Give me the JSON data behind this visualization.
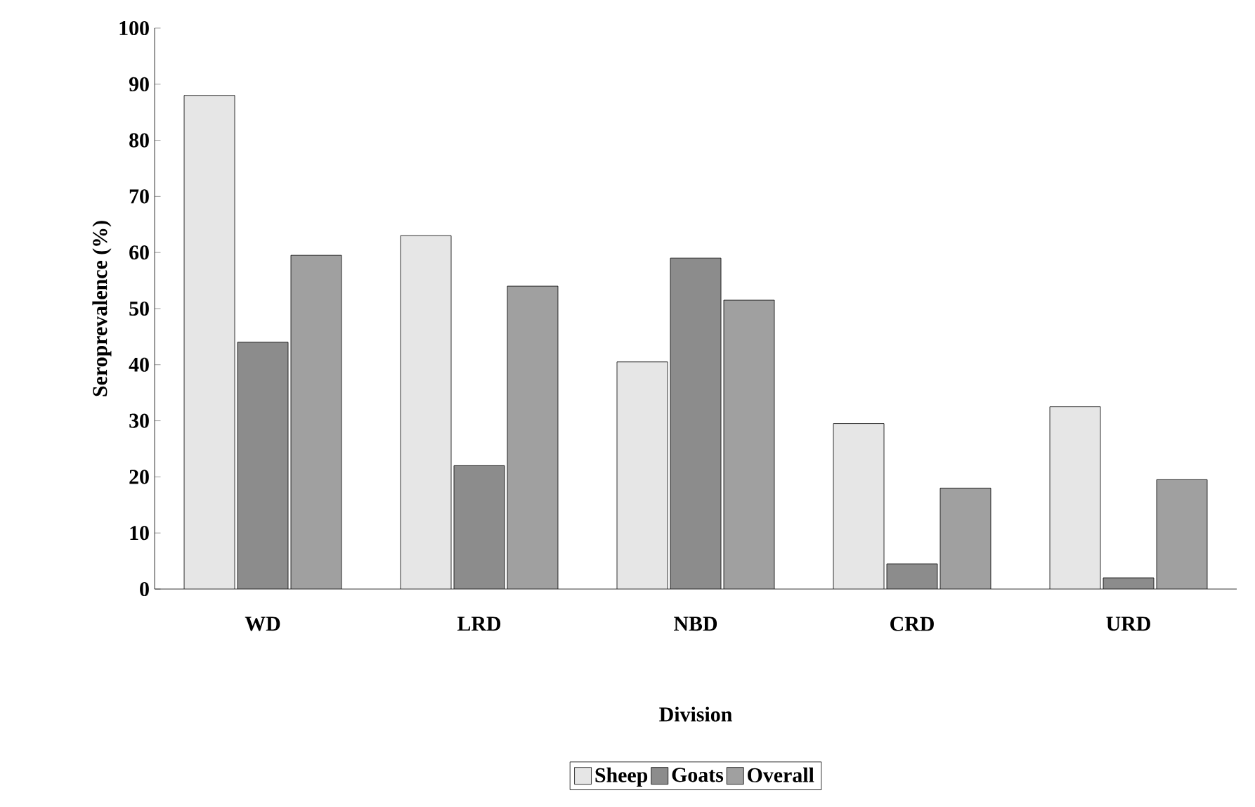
{
  "chart_data": {
    "type": "bar",
    "xlabel": "Division",
    "ylabel": "Seroprevalence (%)",
    "categories": [
      "WD",
      "LRD",
      "NBD",
      "CRD",
      "URD"
    ],
    "series": [
      {
        "name": "Sheep",
        "color": "#e6e6e6",
        "values": [
          88,
          63,
          40.5,
          29.5,
          32.5
        ]
      },
      {
        "name": "Goats",
        "color": "#8c8c8c",
        "values": [
          44,
          22,
          59,
          4.5,
          2
        ]
      },
      {
        "name": "Overall",
        "color": "#a0a0a0",
        "values": [
          59.5,
          54,
          51.5,
          18,
          19.5
        ]
      }
    ],
    "ylim": [
      0,
      100
    ],
    "yticks": [
      0,
      10,
      20,
      30,
      40,
      50,
      60,
      70,
      80,
      90,
      100
    ],
    "grid": false,
    "legend": "bottom"
  }
}
